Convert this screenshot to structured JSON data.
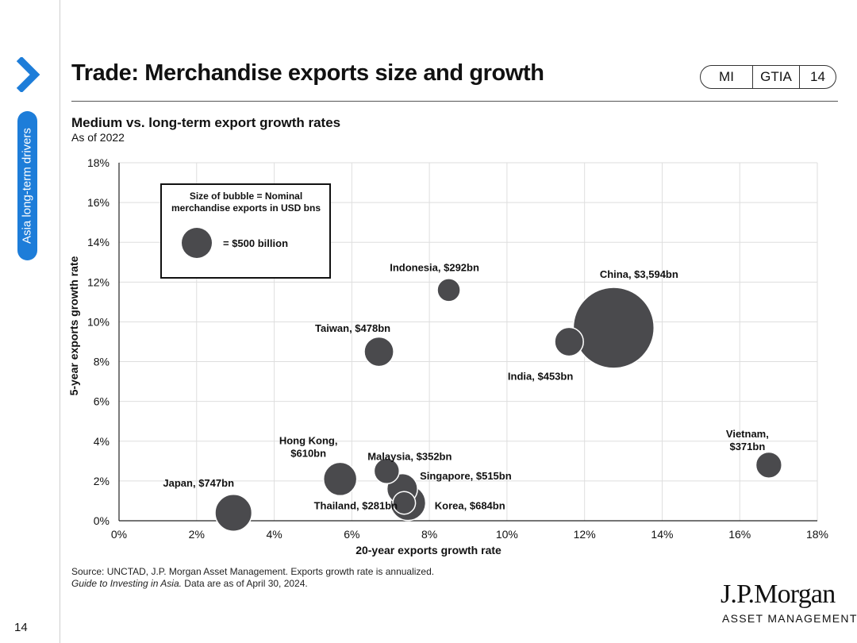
{
  "sidebar": {
    "label": "Asia long-term drivers"
  },
  "header": {
    "title": "Trade: Merchandise exports size and growth",
    "tags": [
      "MI",
      "GTIA",
      "14"
    ]
  },
  "colors": {
    "bubble": "#4a4a4d",
    "accent": "#1d7dd9",
    "grid": "#dedede"
  },
  "chart_data": {
    "type": "scatter",
    "title": "Medium vs. long-term export growth rates",
    "subtitle": "As of 2022",
    "xlabel": "20-year exports growth rate",
    "ylabel": "5-year exports growth rate",
    "xlim": [
      0,
      18
    ],
    "ylim": [
      0,
      18
    ],
    "xticks": [
      "0%",
      "2%",
      "4%",
      "6%",
      "8%",
      "10%",
      "12%",
      "14%",
      "16%",
      "18%"
    ],
    "yticks": [
      "0%",
      "2%",
      "4%",
      "6%",
      "8%",
      "10%",
      "12%",
      "14%",
      "16%",
      "18%"
    ],
    "grid": true,
    "size_unit": "USD bn",
    "legend": {
      "heading_line1": "Size of bubble = Nominal",
      "heading_line2": "merchandise exports in USD bns",
      "entry": "= $500 billion",
      "reference_size": 500,
      "placement": "top-left"
    },
    "points": [
      {
        "label": "China, $3,594bn",
        "x": 12.75,
        "y": 9.7,
        "size": 3594
      },
      {
        "label": "Indonesia, $292bn",
        "x": 8.5,
        "y": 11.6,
        "size": 292
      },
      {
        "label": "Taiwan, $478bn",
        "x": 6.7,
        "y": 8.5,
        "size": 478
      },
      {
        "label": "India, $453bn",
        "x": 11.6,
        "y": 9.0,
        "size": 453
      },
      {
        "label": "Vietnam,|$371bn",
        "x": 16.75,
        "y": 2.8,
        "size": 371
      },
      {
        "label": "Hong Kong,|$610bn",
        "x": 5.7,
        "y": 2.1,
        "size": 610
      },
      {
        "label": "Malaysia, $352bn",
        "x": 6.9,
        "y": 2.5,
        "size": 352
      },
      {
        "label": "Singapore, $515bn",
        "x": 7.3,
        "y": 1.6,
        "size": 515
      },
      {
        "label": "Japan, $747bn",
        "x": 2.95,
        "y": 0.4,
        "size": 747
      },
      {
        "label": "Korea, $684bn",
        "x": 7.45,
        "y": 0.9,
        "size": 684
      },
      {
        "label": "Thailand, $281bn",
        "x": 7.35,
        "y": 0.9,
        "size": 281
      }
    ]
  },
  "footer": {
    "source_line1": "Source: UNCTAD, J.P. Morgan Asset Management. Exports growth rate is annualized.",
    "source_italic": "Guide to Investing in Asia.",
    "source_line2_rest": " Data are as of April 30, 2024.",
    "page_number": "14",
    "logo_main": "J.P.Morgan",
    "logo_sub": "ASSET MANAGEMENT"
  }
}
